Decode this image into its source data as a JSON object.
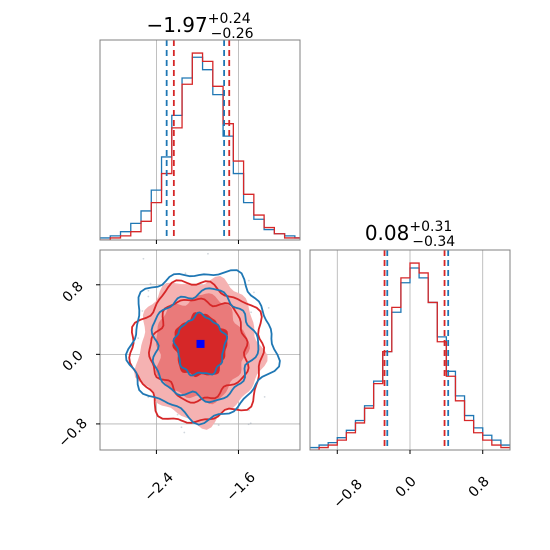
{
  "colors": {
    "red": "#d62728",
    "blue": "#1f77b4",
    "truth_marker": "#0000ff",
    "grid": "#b0b0b0",
    "scatter": "#9aa7b4",
    "fill_outer": "#f5b2b2",
    "fill_mid": "#ea7a7a",
    "fill_inner": "#d62728"
  },
  "chart_data": [
    {
      "type": "area",
      "panel": "top-left histogram (parameter 1)",
      "title": {
        "median": "−1.97",
        "plus": "+0.24",
        "minus": "−0.26"
      },
      "x_range": [
        -2.95,
        -1.0
      ],
      "x_ticks": [
        -2.4,
        -1.6
      ],
      "x_tick_labels_shown": false,
      "series": [
        {
          "color": "#1f77b4",
          "quantiles": [
            -2.3,
            -1.74
          ],
          "bin_edges": [
            -2.95,
            -2.85,
            -2.75,
            -2.65,
            -2.55,
            -2.45,
            -2.35,
            -2.25,
            -2.15,
            -2.05,
            -1.95,
            -1.85,
            -1.75,
            -1.65,
            -1.55,
            -1.45,
            -1.35,
            -1.25,
            -1.15,
            -1.05,
            -1.0
          ],
          "counts": [
            1,
            2,
            4,
            8,
            14,
            24,
            40,
            60,
            78,
            88,
            82,
            70,
            50,
            32,
            18,
            10,
            5,
            3,
            2,
            1
          ]
        },
        {
          "color": "#d62728",
          "quantiles": [
            -2.23,
            -1.69
          ],
          "bin_edges": [
            -2.95,
            -2.85,
            -2.75,
            -2.65,
            -2.55,
            -2.45,
            -2.35,
            -2.25,
            -2.15,
            -2.05,
            -1.95,
            -1.85,
            -1.75,
            -1.65,
            -1.55,
            -1.45,
            -1.35,
            -1.25,
            -1.15,
            -1.05,
            -1.0
          ],
          "counts": [
            0,
            1,
            2,
            4,
            9,
            18,
            32,
            54,
            75,
            90,
            86,
            74,
            56,
            38,
            22,
            12,
            6,
            3,
            1,
            1
          ]
        }
      ]
    },
    {
      "type": "area",
      "panel": "bottom-right histogram (parameter 2)",
      "title": {
        "median": "0.08",
        "plus": "+0.31",
        "minus": "−0.34"
      },
      "x_range": [
        -1.1,
        1.1
      ],
      "x_ticks": [
        -0.8,
        0.0,
        0.8
      ],
      "x_tick_labels": [
        "−0.8",
        "0.0",
        "0.8"
      ],
      "series": [
        {
          "color": "#1f77b4",
          "quantiles": [
            -0.25,
            0.42
          ],
          "bin_edges": [
            -1.1,
            -1.0,
            -0.9,
            -0.8,
            -0.7,
            -0.6,
            -0.5,
            -0.4,
            -0.3,
            -0.2,
            -0.1,
            0.0,
            0.1,
            0.2,
            0.3,
            0.4,
            0.5,
            0.6,
            0.7,
            0.8,
            0.9,
            1.0,
            1.1
          ],
          "counts": [
            1,
            2,
            3,
            5,
            8,
            12,
            18,
            28,
            40,
            56,
            68,
            74,
            70,
            60,
            46,
            32,
            22,
            14,
            9,
            6,
            4,
            2
          ]
        },
        {
          "color": "#d62728",
          "quantiles": [
            -0.28,
            0.38
          ],
          "bin_edges": [
            -1.1,
            -1.0,
            -0.9,
            -0.8,
            -0.7,
            -0.6,
            -0.5,
            -0.4,
            -0.3,
            -0.2,
            -0.1,
            0.0,
            0.1,
            0.2,
            0.3,
            0.4,
            0.5,
            0.6,
            0.7,
            0.8,
            0.9,
            1.0,
            1.1
          ],
          "counts": [
            0,
            1,
            2,
            4,
            7,
            11,
            17,
            27,
            40,
            58,
            70,
            76,
            72,
            60,
            44,
            30,
            20,
            12,
            7,
            4,
            2,
            1
          ]
        }
      ]
    },
    {
      "type": "scatter",
      "panel": "bottom-left 2D contour (parameter 1 vs parameter 2)",
      "x_range": [
        -2.95,
        -1.0
      ],
      "y_range": [
        -1.1,
        1.2
      ],
      "x_ticks": [
        -2.4,
        -1.6
      ],
      "x_tick_labels": [
        "−2.4",
        "−1.6"
      ],
      "y_ticks": [
        -0.8,
        0.0,
        0.8
      ],
      "y_tick_labels": [
        "−0.8",
        "0.0",
        "0.8"
      ],
      "truth_point": {
        "x": -1.97,
        "y": 0.12
      },
      "levels": [
        {
          "kind": "fill",
          "color": "#f5b2b2",
          "center": [
            -1.98,
            0.05
          ],
          "radius": [
            0.6,
            0.82
          ]
        },
        {
          "kind": "fill",
          "color": "#ea7a7a",
          "center": [
            -1.97,
            0.07
          ],
          "radius": [
            0.44,
            0.6
          ]
        },
        {
          "kind": "fill",
          "color": "#d62728",
          "center": [
            -1.97,
            0.1
          ],
          "radius": [
            0.26,
            0.36
          ]
        },
        {
          "kind": "line",
          "color": "#d62728",
          "center": [
            -1.99,
            0.02
          ],
          "radius": [
            0.64,
            0.8
          ]
        },
        {
          "kind": "line",
          "color": "#d62728",
          "center": [
            -1.98,
            0.06
          ],
          "radius": [
            0.47,
            0.58
          ]
        },
        {
          "kind": "line",
          "color": "#1f77b4",
          "center": [
            -1.96,
            0.12
          ],
          "radius": [
            0.7,
            0.84
          ]
        },
        {
          "kind": "line",
          "color": "#1f77b4",
          "center": [
            -1.94,
            0.1
          ],
          "radius": [
            0.5,
            0.62
          ]
        },
        {
          "kind": "line",
          "color": "#1f77b4",
          "center": [
            -1.97,
            0.1
          ],
          "radius": [
            0.24,
            0.34
          ]
        }
      ]
    }
  ]
}
